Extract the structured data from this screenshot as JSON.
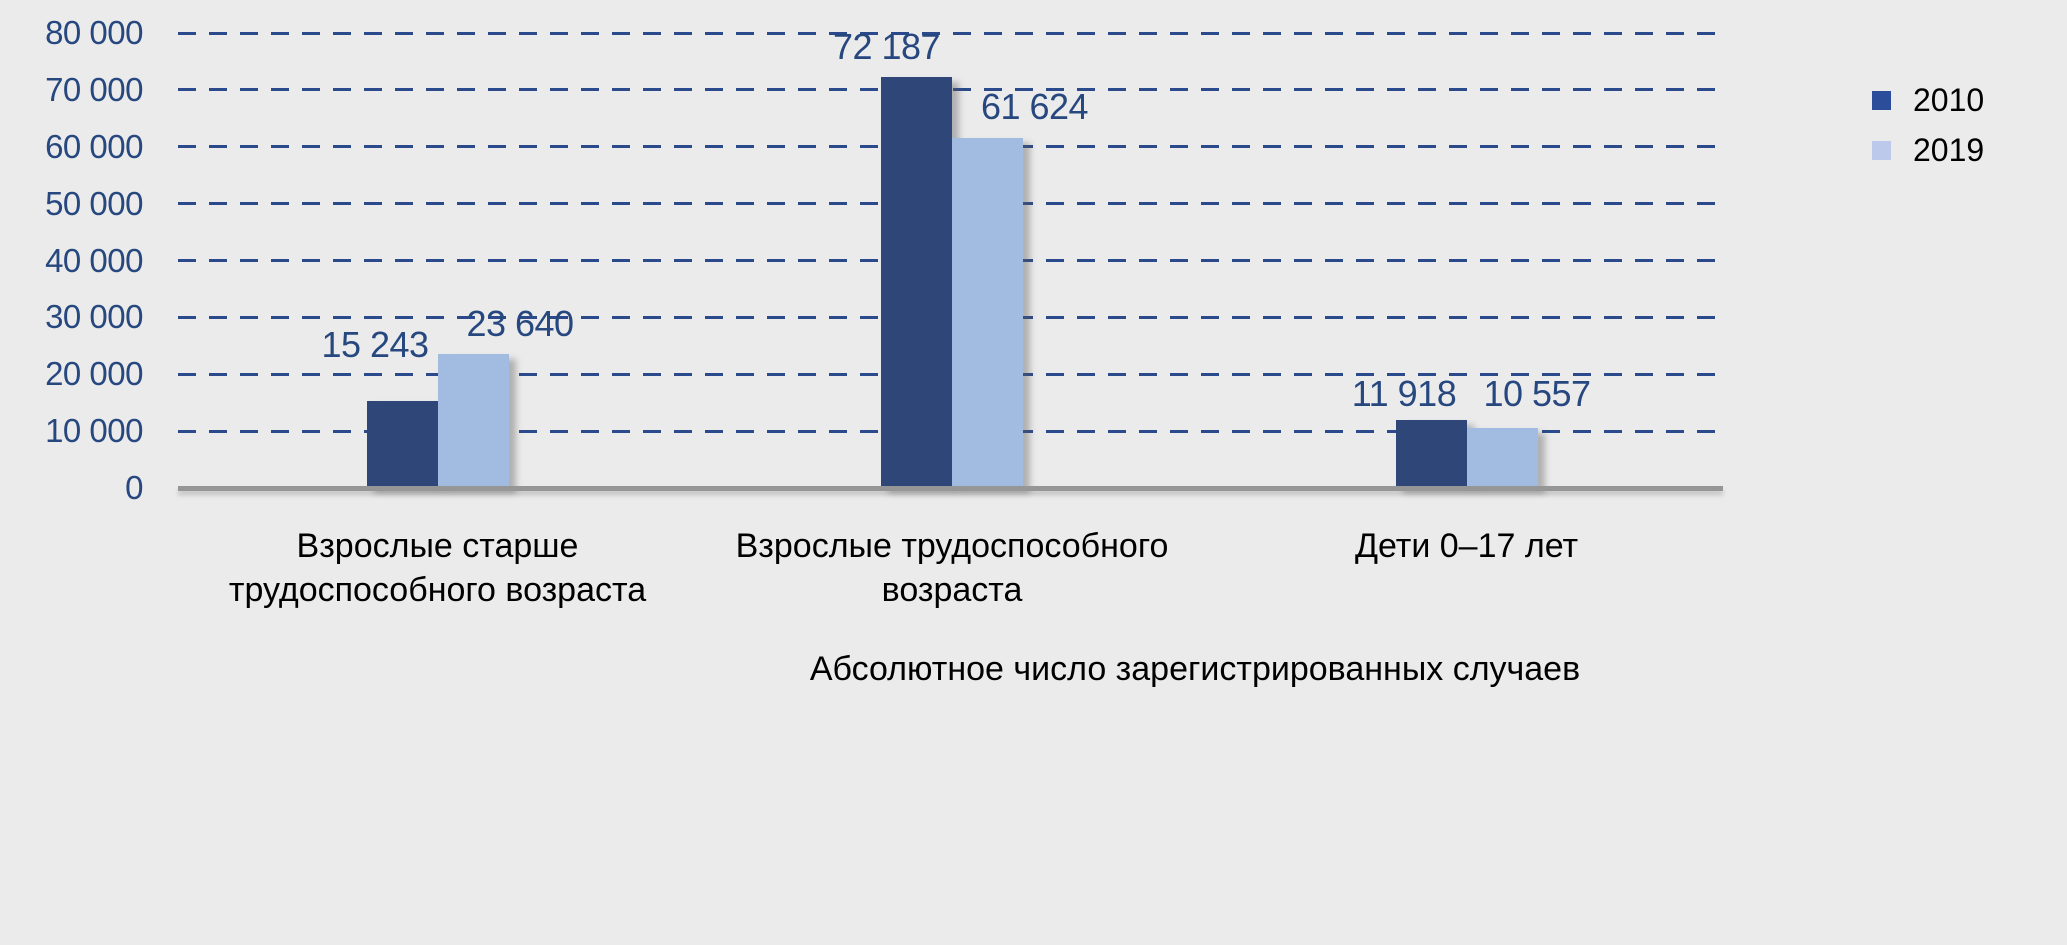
{
  "chart_data": {
    "type": "bar",
    "title": "",
    "xlabel": "Абсолютное число зарегистрированных случаев",
    "ylabel": "",
    "ylim": [
      0,
      80000
    ],
    "ytick_step": 10000,
    "yticks": [
      "80 000",
      "70 000",
      "60 000",
      "50 000",
      "40 000",
      "30 000",
      "20 000",
      "10 000",
      "0"
    ],
    "grid": "horizontal-dashed",
    "legend_position": "top-right",
    "categories": [
      "Взрослые старше трудоспособного возраста",
      "Взрослые трудоспособного возраста",
      "Дети 0–17 лет"
    ],
    "category_lines": [
      [
        "Взрослые старше",
        "трудоспособного возраста"
      ],
      [
        "Взрослые трудоспособного",
        "возраста"
      ],
      [
        "Дети 0–17 лет"
      ]
    ],
    "series": [
      {
        "name": "2010",
        "values": [
          15243,
          72187,
          11918
        ],
        "value_labels": [
          "15 243",
          "72 187",
          "11 918"
        ],
        "color": "#2e4678"
      },
      {
        "name": "2019",
        "values": [
          23640,
          61624,
          10557
        ],
        "value_labels": [
          "23 640",
          "61 624",
          "10 557"
        ],
        "color": "#a1bbe1"
      }
    ]
  },
  "legend": {
    "items": [
      {
        "label": "2010",
        "color": "#2c4d99"
      },
      {
        "label": "2019",
        "color": "#bdc9ea"
      }
    ]
  },
  "colors": {
    "background": "#ebebec",
    "gridline": "#2b4a8b",
    "tick_text": "#27477f",
    "value_label_text": "#27477f",
    "category_text": "#000000",
    "axis_line": "#969696"
  }
}
